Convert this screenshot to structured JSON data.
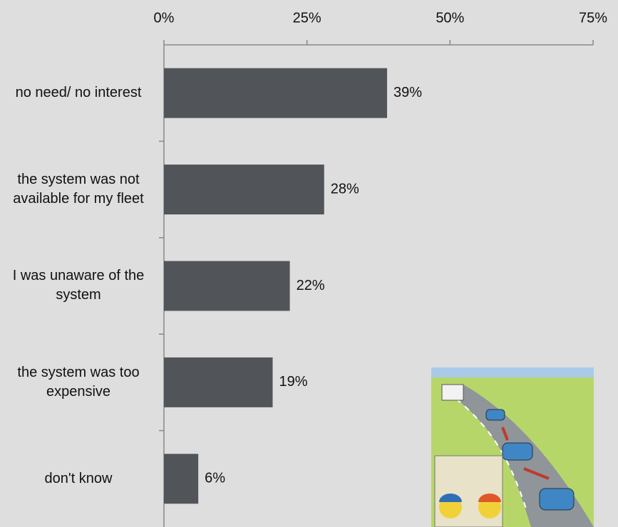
{
  "chart_data": {
    "type": "bar",
    "orientation": "horizontal",
    "categories": [
      "no need/ no interest",
      "the system was not available for my fleet",
      "I was unaware of the system",
      "the system was too expensive",
      "don't know"
    ],
    "values": [
      39,
      28,
      22,
      19,
      6
    ],
    "value_labels": [
      "39%",
      "28%",
      "22%",
      "19%",
      "6%"
    ],
    "color": "#515559",
    "xlim": [
      0,
      75
    ],
    "xticks": [
      {
        "value": 0,
        "label": "0%"
      },
      {
        "value": 25,
        "label": "25%"
      },
      {
        "value": 50,
        "label": "50%"
      },
      {
        "value": 75,
        "label": "75%"
      }
    ]
  }
}
